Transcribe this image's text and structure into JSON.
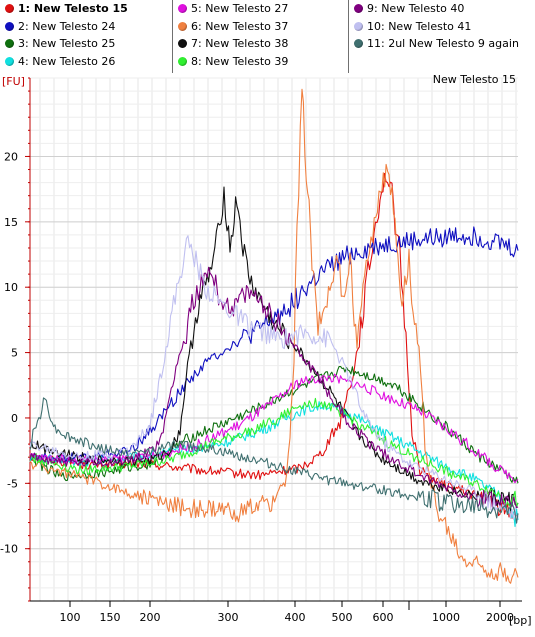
{
  "legend": {
    "columns": [
      [
        {
          "label": "1: New Telesto 15",
          "color": "#e01010",
          "active": true
        },
        {
          "label": "2: New Telesto 24",
          "color": "#1010c0"
        },
        {
          "label": "3: New Telesto 25",
          "color": "#107010"
        },
        {
          "label": "4: New Telesto 26",
          "color": "#10e0e0"
        }
      ],
      [
        {
          "label": "5: New Telesto 27",
          "color": "#e010e0"
        },
        {
          "label": "6: New Telesto 37",
          "color": "#f08040"
        },
        {
          "label": "7: New Telesto 38",
          "color": "#101010"
        },
        {
          "label": "8: New Telesto 39",
          "color": "#30f030"
        }
      ],
      [
        {
          "label": "9: New Telesto 40",
          "color": "#800080"
        },
        {
          "label": "10: New Telesto 41",
          "color": "#c0c0f0"
        },
        {
          "label": "11: 2ul New Telesto 9 again",
          "color": "#407070"
        }
      ]
    ]
  },
  "chart_data": {
    "type": "line",
    "title": "New Telesto 15",
    "ylabel": "[FU]",
    "xlabel": "[bp]",
    "ylim": [
      -14,
      26
    ],
    "y_ticks": [
      -10,
      -5,
      0,
      5,
      10,
      15,
      20
    ],
    "x_tick_labels": [
      "100",
      "150",
      "200",
      "300",
      "400",
      "500",
      "600",
      "1000",
      "2000"
    ],
    "x_tick_positions": [
      70,
      110,
      150,
      228,
      295,
      342,
      383,
      446,
      500
    ],
    "series": [
      {
        "name": "1: New Telesto 15",
        "color": "#e01010",
        "points": [
          [
            30,
            -3
          ],
          [
            90,
            -3.6
          ],
          [
            150,
            -3.5
          ],
          [
            200,
            -4
          ],
          [
            260,
            -4.4
          ],
          [
            300,
            -3.8
          ],
          [
            320,
            -2.8
          ],
          [
            340,
            -0.3
          ],
          [
            355,
            4
          ],
          [
            368,
            11
          ],
          [
            380,
            17
          ],
          [
            386,
            18.7
          ],
          [
            392,
            17
          ],
          [
            400,
            12
          ],
          [
            406,
            6
          ],
          [
            412,
            -1
          ],
          [
            420,
            -4
          ],
          [
            440,
            -5
          ],
          [
            480,
            -6
          ],
          [
            500,
            -6.8
          ],
          [
            518,
            -7.3
          ]
        ]
      },
      {
        "name": "2: New Telesto 24",
        "color": "#1010c0",
        "points": [
          [
            30,
            -3
          ],
          [
            90,
            -3
          ],
          [
            130,
            -2.5
          ],
          [
            150,
            -1
          ],
          [
            170,
            1
          ],
          [
            190,
            3
          ],
          [
            210,
            4.5
          ],
          [
            230,
            5.5
          ],
          [
            260,
            6.8
          ],
          [
            290,
            8.6
          ],
          [
            320,
            11
          ],
          [
            350,
            12.5
          ],
          [
            380,
            13.2
          ],
          [
            420,
            13.6
          ],
          [
            460,
            14
          ],
          [
            480,
            13.8
          ],
          [
            500,
            13.4
          ],
          [
            518,
            12.8
          ]
        ]
      },
      {
        "name": "3: New Telesto 25",
        "color": "#107010",
        "points": [
          [
            30,
            -3
          ],
          [
            60,
            -4.5
          ],
          [
            100,
            -4.2
          ],
          [
            150,
            -3.5
          ],
          [
            190,
            -1.5
          ],
          [
            230,
            -0.2
          ],
          [
            260,
            0.8
          ],
          [
            290,
            2
          ],
          [
            320,
            3
          ],
          [
            345,
            3.8
          ],
          [
            370,
            3.2
          ],
          [
            395,
            2.5
          ],
          [
            420,
            1
          ],
          [
            450,
            -1
          ],
          [
            480,
            -3
          ],
          [
            500,
            -4
          ],
          [
            518,
            -5
          ]
        ]
      },
      {
        "name": "4: New Telesto 26",
        "color": "#10e0e0",
        "points": [
          [
            30,
            -3
          ],
          [
            80,
            -3.4
          ],
          [
            130,
            -3
          ],
          [
            180,
            -2.5
          ],
          [
            220,
            -2
          ],
          [
            260,
            -1
          ],
          [
            300,
            0.5
          ],
          [
            325,
            1
          ],
          [
            350,
            0.3
          ],
          [
            380,
            -1
          ],
          [
            410,
            -2.2
          ],
          [
            440,
            -3.5
          ],
          [
            470,
            -4.5
          ],
          [
            500,
            -6
          ],
          [
            518,
            -7.8
          ]
        ]
      },
      {
        "name": "5: New Telesto 27",
        "color": "#e010e0",
        "points": [
          [
            30,
            -3
          ],
          [
            90,
            -3.2
          ],
          [
            150,
            -3
          ],
          [
            200,
            -2
          ],
          [
            240,
            -0.5
          ],
          [
            270,
            1
          ],
          [
            300,
            2.8
          ],
          [
            330,
            3.1
          ],
          [
            360,
            2.5
          ],
          [
            390,
            1.5
          ],
          [
            420,
            0.5
          ],
          [
            450,
            -1
          ],
          [
            480,
            -2.8
          ],
          [
            500,
            -4
          ],
          [
            518,
            -4.7
          ]
        ]
      },
      {
        "name": "6: New Telesto 37",
        "color": "#f08040",
        "points": [
          [
            30,
            -3.5
          ],
          [
            80,
            -4.5
          ],
          [
            120,
            -5.5
          ],
          [
            160,
            -6.5
          ],
          [
            200,
            -7
          ],
          [
            240,
            -7.2
          ],
          [
            270,
            -6.5
          ],
          [
            285,
            -5
          ],
          [
            290,
            -2
          ],
          [
            294,
            5
          ],
          [
            297,
            14
          ],
          [
            302,
            25
          ],
          [
            312,
            12
          ],
          [
            318,
            7
          ],
          [
            330,
            10
          ],
          [
            338,
            12
          ],
          [
            343,
            9
          ],
          [
            350,
            12
          ],
          [
            357,
            5
          ],
          [
            363,
            11
          ],
          [
            371,
            13
          ],
          [
            379,
            17.5
          ],
          [
            389,
            19
          ],
          [
            395,
            15
          ],
          [
            402,
            9
          ],
          [
            409,
            12.3
          ],
          [
            413,
            8
          ],
          [
            419,
            5
          ],
          [
            425,
            -2
          ],
          [
            436,
            -7
          ],
          [
            450,
            -9
          ],
          [
            462,
            -10.8
          ],
          [
            490,
            -11.6
          ],
          [
            518,
            -12.2
          ]
        ]
      },
      {
        "name": "7: New Telesto 38",
        "color": "#101010",
        "points": [
          [
            30,
            -2
          ],
          [
            90,
            -3.2
          ],
          [
            150,
            -3.3
          ],
          [
            170,
            -2.5
          ],
          [
            180,
            -1
          ],
          [
            186,
            3
          ],
          [
            194,
            7
          ],
          [
            200,
            9
          ],
          [
            210,
            11
          ],
          [
            218,
            14
          ],
          [
            224,
            17.2
          ],
          [
            230,
            13
          ],
          [
            237,
            16.8
          ],
          [
            243,
            13
          ],
          [
            250,
            10.5
          ],
          [
            260,
            9
          ],
          [
            275,
            7
          ],
          [
            290,
            6
          ],
          [
            310,
            4
          ],
          [
            330,
            2
          ],
          [
            355,
            -1
          ],
          [
            380,
            -3
          ],
          [
            420,
            -4.8
          ],
          [
            460,
            -5.7
          ],
          [
            500,
            -6.2
          ],
          [
            518,
            -6.5
          ]
        ]
      },
      {
        "name": "8: New Telesto 39",
        "color": "#30f030",
        "points": [
          [
            30,
            -3
          ],
          [
            80,
            -4
          ],
          [
            130,
            -3.7
          ],
          [
            170,
            -3.2
          ],
          [
            210,
            -2
          ],
          [
            250,
            -1
          ],
          [
            280,
            0
          ],
          [
            300,
            1
          ],
          [
            320,
            1.2
          ],
          [
            340,
            0.5
          ],
          [
            360,
            -0.5
          ],
          [
            390,
            -2
          ],
          [
            420,
            -3.2
          ],
          [
            450,
            -4.2
          ],
          [
            480,
            -5.2
          ],
          [
            518,
            -6.5
          ]
        ]
      },
      {
        "name": "9: New Telesto 40",
        "color": "#800080",
        "points": [
          [
            30,
            -3
          ],
          [
            80,
            -3.5
          ],
          [
            130,
            -3.3
          ],
          [
            160,
            -2
          ],
          [
            168,
            1
          ],
          [
            176,
            4
          ],
          [
            185,
            6
          ],
          [
            192,
            8.8
          ],
          [
            200,
            10
          ],
          [
            210,
            11.5
          ],
          [
            220,
            9
          ],
          [
            232,
            8.5
          ],
          [
            248,
            9.5
          ],
          [
            260,
            9
          ],
          [
            280,
            7
          ],
          [
            300,
            5
          ],
          [
            320,
            3
          ],
          [
            345,
            0
          ],
          [
            370,
            -2
          ],
          [
            400,
            -3.5
          ],
          [
            430,
            -4.8
          ],
          [
            460,
            -5.7
          ],
          [
            500,
            -6.5
          ],
          [
            518,
            -6.8
          ]
        ]
      },
      {
        "name": "10: New Telesto 41",
        "color": "#c0c0f0",
        "points": [
          [
            30,
            -2
          ],
          [
            80,
            -3
          ],
          [
            130,
            -2.5
          ],
          [
            150,
            -0.5
          ],
          [
            160,
            3
          ],
          [
            172,
            8
          ],
          [
            180,
            11
          ],
          [
            188,
            13.5
          ],
          [
            196,
            12
          ],
          [
            205,
            10
          ],
          [
            225,
            8.5
          ],
          [
            250,
            7
          ],
          [
            280,
            6
          ],
          [
            305,
            6.5
          ],
          [
            330,
            6
          ],
          [
            350,
            3
          ],
          [
            365,
            0
          ],
          [
            385,
            -2
          ],
          [
            410,
            -3.5
          ],
          [
            440,
            -4.5
          ],
          [
            470,
            -5.5
          ],
          [
            500,
            -6.8
          ],
          [
            518,
            -7.5
          ]
        ]
      },
      {
        "name": "11: 2ul New Telesto 9 again",
        "color": "#407070",
        "points": [
          [
            30,
            -2
          ],
          [
            45,
            1.5
          ],
          [
            55,
            -0.8
          ],
          [
            70,
            -1.5
          ],
          [
            100,
            -2.3
          ],
          [
            130,
            -2.8
          ],
          [
            150,
            -2.5
          ],
          [
            180,
            -2
          ],
          [
            210,
            -2.4
          ],
          [
            240,
            -2.9
          ],
          [
            270,
            -3.5
          ],
          [
            300,
            -4.2
          ],
          [
            330,
            -4.8
          ],
          [
            360,
            -5.2
          ],
          [
            390,
            -5.6
          ],
          [
            420,
            -6.1
          ],
          [
            450,
            -6.5
          ],
          [
            480,
            -6.9
          ],
          [
            518,
            -7.3
          ]
        ]
      }
    ]
  }
}
